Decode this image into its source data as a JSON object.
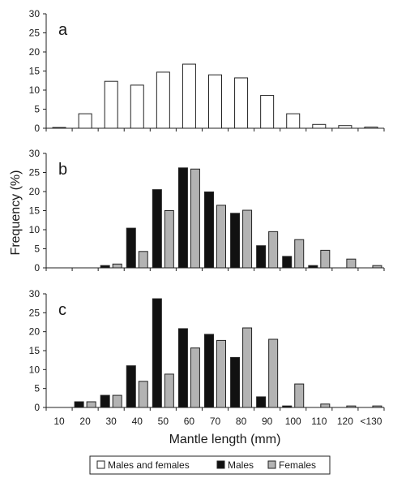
{
  "chart_data": {
    "type": "bar",
    "categories": [
      "10",
      "20",
      "30",
      "40",
      "50",
      "60",
      "70",
      "80",
      "90",
      "100",
      "110",
      "120",
      "<130"
    ],
    "xlabel": "Mantle length (mm)",
    "ylabel": "Frequency (%)",
    "yticks": [
      "0",
      "5",
      "10",
      "15",
      "20",
      "25",
      "30"
    ],
    "ylim": [
      0,
      30
    ],
    "grid": false,
    "legend": {
      "position": "bottom",
      "entries": [
        {
          "label": "Males and females",
          "color": "#ffffff"
        },
        {
          "label": "Males",
          "color": "#111111"
        },
        {
          "label": "Females",
          "color": "#b3b3b3"
        }
      ]
    },
    "panels": [
      {
        "label": "a",
        "series": [
          {
            "name": "Males and females",
            "color": "#ffffff",
            "values": [
              0.2,
              3.8,
              12.3,
              11.3,
              14.7,
              16.8,
              14.0,
              13.2,
              8.6,
              3.8,
              1.0,
              0.7,
              0.3
            ]
          }
        ]
      },
      {
        "label": "b",
        "series": [
          {
            "name": "Males",
            "color": "#111111",
            "values": [
              0,
              0,
              0.6,
              10.4,
              20.5,
              26.2,
              19.9,
              14.3,
              5.8,
              3.0,
              0.6,
              0,
              0
            ]
          },
          {
            "name": "Females",
            "color": "#b3b3b3",
            "values": [
              0,
              0,
              1.0,
              4.3,
              15.0,
              25.9,
              16.4,
              15.1,
              9.5,
              7.4,
              4.6,
              2.3,
              0.6
            ]
          }
        ]
      },
      {
        "label": "c",
        "series": [
          {
            "name": "Males",
            "color": "#111111",
            "values": [
              0,
              1.5,
              3.2,
              11.0,
              28.7,
              20.8,
              19.3,
              13.2,
              2.8,
              0.4,
              0,
              0,
              0
            ]
          },
          {
            "name": "Females",
            "color": "#b3b3b3",
            "values": [
              0,
              1.5,
              3.2,
              6.9,
              8.8,
              15.7,
              17.7,
              21.0,
              18.0,
              6.2,
              0.9,
              0.4,
              0.4
            ]
          }
        ]
      }
    ]
  }
}
